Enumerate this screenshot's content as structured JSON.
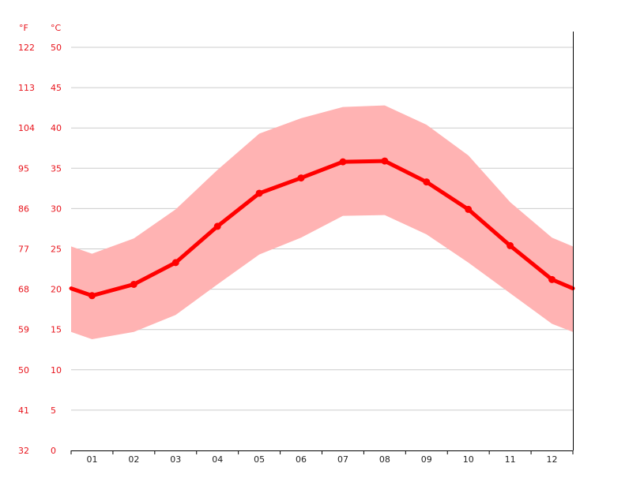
{
  "chart_data": {
    "type": "line",
    "title": "",
    "units": {
      "fahrenheit": "°F",
      "celsius": "°C"
    },
    "xlabel": "",
    "ylabel": "",
    "categories": [
      "01",
      "02",
      "03",
      "04",
      "05",
      "06",
      "07",
      "08",
      "09",
      "10",
      "11",
      "12"
    ],
    "ylim": [
      0,
      50
    ],
    "y_ticks_c": [
      "0",
      "5",
      "10",
      "15",
      "20",
      "25",
      "30",
      "35",
      "40",
      "45",
      "50"
    ],
    "y_ticks_f": [
      "32",
      "41",
      "50",
      "59",
      "68",
      "77",
      "86",
      "95",
      "104",
      "113",
      "122"
    ],
    "grid": true,
    "colors": {
      "line": "#ff0000",
      "band": "#ffb3b3",
      "tick_text": "#e8141c",
      "grid": "#cccccc"
    },
    "series": [
      {
        "role": "average",
        "values": [
          19.2,
          20.6,
          23.3,
          27.8,
          31.9,
          33.8,
          35.8,
          35.9,
          33.3,
          29.9,
          25.4,
          21.2
        ]
      },
      {
        "role": "max",
        "values": [
          24.4,
          26.3,
          29.9,
          34.8,
          39.3,
          41.2,
          42.6,
          42.8,
          40.4,
          36.6,
          30.8,
          26.4
        ]
      },
      {
        "role": "min",
        "values": [
          13.8,
          14.7,
          16.8,
          20.6,
          24.3,
          26.4,
          29.1,
          29.2,
          26.8,
          23.3,
          19.5,
          15.7
        ]
      }
    ],
    "edge_values": {
      "average": [
        20.1,
        20.1
      ],
      "max": [
        25.3,
        25.3
      ],
      "min": [
        14.7,
        14.7
      ]
    }
  }
}
